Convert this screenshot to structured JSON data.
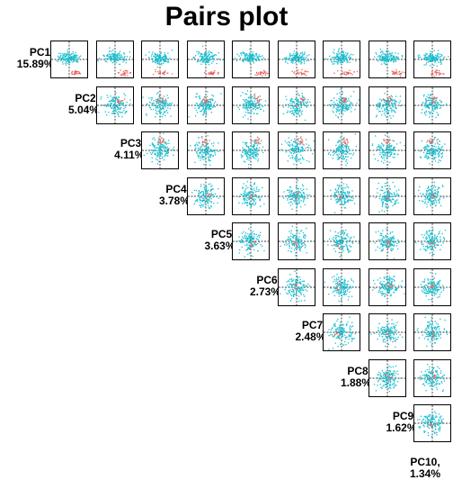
{
  "title": "Pairs plot",
  "colors": {
    "main": "#17BECF",
    "highlight": "#E8635F",
    "axis": "#000000"
  },
  "chart_data": {
    "type": "scatter",
    "title": "Pairs plot",
    "layout": "upper-triangle pairs matrix, components on the diagonal",
    "components": [
      {
        "name": "PC1,",
        "variance": "15.89%"
      },
      {
        "name": "PC2,",
        "variance": "5.04%"
      },
      {
        "name": "PC3,",
        "variance": "4.11%"
      },
      {
        "name": "PC4,",
        "variance": "3.78%"
      },
      {
        "name": "PC5,",
        "variance": "3.63%"
      },
      {
        "name": "PC6,",
        "variance": "2.73%"
      },
      {
        "name": "PC7,",
        "variance": "2.48%"
      },
      {
        "name": "PC8,",
        "variance": "1.88%"
      },
      {
        "name": "PC9,",
        "variance": "1.62%"
      },
      {
        "name": "PC10,",
        "variance": "1.34%"
      }
    ],
    "groups": [
      {
        "color": "#17BECF"
      },
      {
        "color": "#E8635F"
      }
    ],
    "reference_lines": "dashed zero lines at x = 0 and y = 0 in every panel"
  }
}
